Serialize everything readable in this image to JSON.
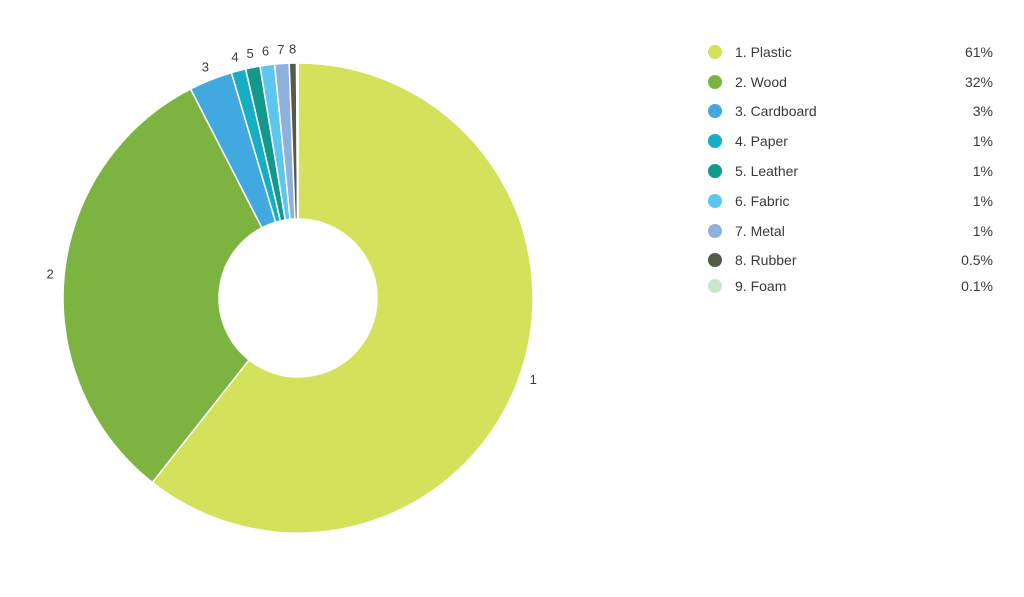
{
  "chart_data": {
    "type": "pie",
    "title": "",
    "legend_position": "right",
    "slices": [
      {
        "slice_label": "1",
        "legend_label": "1. Plastic",
        "value_label": "61%",
        "value": 61,
        "color": "#d3e15b"
      },
      {
        "slice_label": "2",
        "legend_label": "2. Wood",
        "value_label": "32%",
        "value": 32,
        "color": "#7db441"
      },
      {
        "slice_label": "3",
        "legend_label": "3. Cardboard",
        "value_label": "3%",
        "value": 3,
        "color": "#41a8e0"
      },
      {
        "slice_label": "4",
        "legend_label": "4. Paper",
        "value_label": "1%",
        "value": 1,
        "color": "#17adc4"
      },
      {
        "slice_label": "5",
        "legend_label": "5. Leather",
        "value_label": "1%",
        "value": 1,
        "color": "#13998a"
      },
      {
        "slice_label": "6",
        "legend_label": "6. Fabric",
        "value_label": "1%",
        "value": 1,
        "color": "#5cc6ee"
      },
      {
        "slice_label": "7",
        "legend_label": "7. Metal",
        "value_label": "1%",
        "value": 1,
        "color": "#8fb0db"
      },
      {
        "slice_label": "8",
        "legend_label": "8. Rubber",
        "value_label": "0.5%",
        "value": 0.5,
        "color": "#545c47"
      },
      {
        "slice_label": "",
        "legend_label": "9. Foam",
        "value_label": "0.1%",
        "value": 0.1,
        "color": "#c8e8cb"
      }
    ]
  }
}
